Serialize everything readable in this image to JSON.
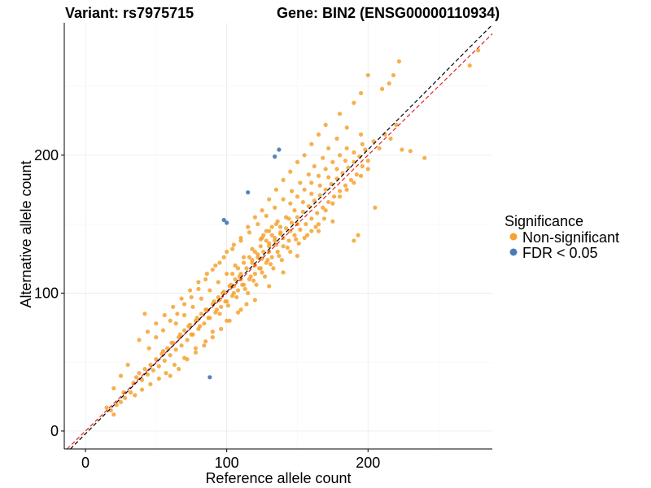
{
  "chart_data": {
    "type": "scatter",
    "title_left": "Variant: rs7975715",
    "title_right": "Gene: BIN2 (ENSG00000110934)",
    "xlabel": "Reference allele count",
    "ylabel": "Alternative allele count",
    "xlim": [
      -15,
      288
    ],
    "ylim": [
      -13,
      296
    ],
    "x_ticks": [
      0,
      100,
      200
    ],
    "y_ticks": [
      0,
      100,
      200
    ],
    "grid": true,
    "legend": {
      "title": "Significance",
      "placement": "right",
      "entries": [
        {
          "label": "Non-significant",
          "color": "#F5A22F"
        },
        {
          "label": "FDR < 0.05",
          "color": "#4A7DB5"
        }
      ]
    },
    "reference_lines": [
      {
        "name": "identity",
        "slope": 1,
        "intercept": 0,
        "color": "#E32222",
        "style": "dashed"
      },
      {
        "name": "fit",
        "slope": 1.03,
        "intercept": -2,
        "color": "#000000",
        "style": "dashed"
      }
    ],
    "series": [
      {
        "name": "Non-significant",
        "color": "#F5A22F",
        "points": [
          [
            15,
            17
          ],
          [
            18,
            15
          ],
          [
            20,
            12
          ],
          [
            22,
            19
          ],
          [
            25,
            21
          ],
          [
            28,
            24
          ],
          [
            20,
            31
          ],
          [
            27,
            28
          ],
          [
            32,
            28
          ],
          [
            34,
            35
          ],
          [
            36,
            39
          ],
          [
            38,
            42
          ],
          [
            40,
            37
          ],
          [
            42,
            45
          ],
          [
            44,
            41
          ],
          [
            46,
            48
          ],
          [
            48,
            44
          ],
          [
            50,
            52
          ],
          [
            52,
            47
          ],
          [
            54,
            56
          ],
          [
            56,
            51
          ],
          [
            58,
            60
          ],
          [
            60,
            55
          ],
          [
            62,
            64
          ],
          [
            64,
            59
          ],
          [
            66,
            68
          ],
          [
            68,
            62
          ],
          [
            70,
            73
          ],
          [
            72,
            66
          ],
          [
            74,
            77
          ],
          [
            76,
            70
          ],
          [
            78,
            80
          ],
          [
            80,
            74
          ],
          [
            82,
            85
          ],
          [
            84,
            78
          ],
          [
            86,
            88
          ],
          [
            88,
            82
          ],
          [
            90,
            92
          ],
          [
            92,
            86
          ],
          [
            94,
            97
          ],
          [
            96,
            90
          ],
          [
            98,
            101
          ],
          [
            100,
            94
          ],
          [
            102,
            105
          ],
          [
            104,
            98
          ],
          [
            106,
            110
          ],
          [
            108,
            102
          ],
          [
            110,
            114
          ],
          [
            112,
            106
          ],
          [
            114,
            118
          ],
          [
            116,
            110
          ],
          [
            118,
            122
          ],
          [
            120,
            114
          ],
          [
            122,
            126
          ],
          [
            124,
            118
          ],
          [
            126,
            130
          ],
          [
            128,
            122
          ],
          [
            130,
            134
          ],
          [
            132,
            126
          ],
          [
            134,
            138
          ],
          [
            136,
            130
          ],
          [
            138,
            143
          ],
          [
            140,
            134
          ],
          [
            142,
            147
          ],
          [
            144,
            138
          ],
          [
            146,
            151
          ],
          [
            148,
            142
          ],
          [
            150,
            155
          ],
          [
            152,
            146
          ],
          [
            154,
            159
          ],
          [
            156,
            150
          ],
          [
            158,
            163
          ],
          [
            160,
            154
          ],
          [
            162,
            167
          ],
          [
            164,
            158
          ],
          [
            166,
            171
          ],
          [
            168,
            162
          ],
          [
            170,
            175
          ],
          [
            172,
            166
          ],
          [
            174,
            179
          ],
          [
            176,
            170
          ],
          [
            178,
            183
          ],
          [
            180,
            174
          ],
          [
            182,
            187
          ],
          [
            184,
            178
          ],
          [
            186,
            191
          ],
          [
            188,
            182
          ],
          [
            190,
            195
          ],
          [
            192,
            186
          ],
          [
            194,
            199
          ],
          [
            196,
            192
          ],
          [
            198,
            204
          ],
          [
            200,
            196
          ],
          [
            204,
            210
          ],
          [
            208,
            205
          ],
          [
            212,
            215
          ],
          [
            216,
            212
          ],
          [
            220,
            222
          ],
          [
            224,
            204
          ],
          [
            230,
            203
          ],
          [
            240,
            198
          ],
          [
            205,
            162
          ],
          [
            190,
            138
          ],
          [
            193,
            142
          ],
          [
            175,
            152
          ],
          [
            165,
            145
          ],
          [
            150,
            127
          ],
          [
            140,
            115
          ],
          [
            130,
            105
          ],
          [
            120,
            95
          ],
          [
            110,
            88
          ],
          [
            100,
            80
          ],
          [
            90,
            72
          ],
          [
            85,
            65
          ],
          [
            78,
            60
          ],
          [
            70,
            53
          ],
          [
            63,
            48
          ],
          [
            57,
            42
          ],
          [
            52,
            38
          ],
          [
            46,
            34
          ],
          [
            40,
            30
          ],
          [
            35,
            26
          ],
          [
            45,
            60
          ],
          [
            50,
            68
          ],
          [
            55,
            73
          ],
          [
            60,
            80
          ],
          [
            65,
            85
          ],
          [
            70,
            92
          ],
          [
            75,
            97
          ],
          [
            80,
            103
          ],
          [
            85,
            110
          ],
          [
            90,
            117
          ],
          [
            95,
            122
          ],
          [
            100,
            130
          ],
          [
            105,
            135
          ],
          [
            110,
            140
          ],
          [
            115,
            148
          ],
          [
            120,
            155
          ],
          [
            125,
            160
          ],
          [
            130,
            168
          ],
          [
            135,
            175
          ],
          [
            140,
            182
          ],
          [
            145,
            188
          ],
          [
            150,
            195
          ],
          [
            155,
            200
          ],
          [
            160,
            208
          ],
          [
            165,
            215
          ],
          [
            170,
            222
          ],
          [
            180,
            230
          ],
          [
            190,
            238
          ],
          [
            195,
            245
          ],
          [
            200,
            258
          ],
          [
            210,
            248
          ],
          [
            215,
            252
          ],
          [
            222,
            268
          ],
          [
            218,
            258
          ],
          [
            272,
            265
          ],
          [
            278,
            276
          ],
          [
            185,
            220
          ],
          [
            178,
            212
          ],
          [
            172,
            205
          ],
          [
            168,
            198
          ],
          [
            162,
            192
          ],
          [
            158,
            186
          ],
          [
            152,
            180
          ],
          [
            146,
            174
          ],
          [
            140,
            168
          ],
          [
            134,
            162
          ],
          [
            128,
            156
          ],
          [
            122,
            150
          ],
          [
            116,
            144
          ],
          [
            110,
            138
          ],
          [
            104,
            132
          ],
          [
            98,
            126
          ],
          [
            92,
            120
          ],
          [
            86,
            114
          ],
          [
            80,
            108
          ],
          [
            74,
            102
          ],
          [
            68,
            96
          ],
          [
            62,
            90
          ],
          [
            56,
            84
          ],
          [
            50,
            78
          ],
          [
            44,
            72
          ],
          [
            38,
            66
          ],
          [
            42,
            85
          ],
          [
            30,
            48
          ],
          [
            25,
            40
          ],
          [
            125,
            140
          ],
          [
            130,
            145
          ],
          [
            135,
            150
          ],
          [
            118,
            132
          ],
          [
            112,
            126
          ],
          [
            106,
            120
          ],
          [
            100,
            114
          ],
          [
            94,
            108
          ],
          [
            88,
            102
          ],
          [
            82,
            96
          ],
          [
            76,
            90
          ],
          [
            70,
            84
          ],
          [
            64,
            78
          ],
          [
            142,
            155
          ],
          [
            148,
            160
          ],
          [
            154,
            166
          ],
          [
            160,
            172
          ],
          [
            166,
            178
          ],
          [
            172,
            184
          ],
          [
            178,
            190
          ],
          [
            184,
            196
          ],
          [
            190,
            202
          ],
          [
            196,
            208
          ],
          [
            115,
            100
          ],
          [
            121,
            106
          ],
          [
            127,
            112
          ],
          [
            133,
            118
          ],
          [
            139,
            124
          ],
          [
            145,
            130
          ],
          [
            151,
            136
          ],
          [
            157,
            142
          ],
          [
            163,
            148
          ],
          [
            169,
            154
          ],
          [
            95,
            85
          ],
          [
            101,
            91
          ],
          [
            107,
            97
          ],
          [
            113,
            103
          ],
          [
            119,
            109
          ],
          [
            125,
            115
          ],
          [
            131,
            121
          ],
          [
            137,
            127
          ],
          [
            143,
            133
          ],
          [
            149,
            139
          ],
          [
            75,
            70
          ],
          [
            81,
            76
          ],
          [
            87,
            82
          ],
          [
            93,
            88
          ],
          [
            99,
            94
          ],
          [
            105,
            100
          ],
          [
            111,
            106
          ],
          [
            117,
            112
          ],
          [
            123,
            118
          ],
          [
            129,
            124
          ],
          [
            55,
            58
          ],
          [
            61,
            64
          ],
          [
            67,
            70
          ],
          [
            73,
            76
          ],
          [
            79,
            82
          ],
          [
            85,
            88
          ],
          [
            91,
            94
          ],
          [
            97,
            100
          ],
          [
            103,
            106
          ],
          [
            109,
            112
          ],
          [
            132,
            142
          ],
          [
            138,
            148
          ],
          [
            144,
            154
          ],
          [
            128,
            138
          ],
          [
            124,
            134
          ],
          [
            120,
            130
          ],
          [
            116,
            126
          ],
          [
            112,
            122
          ],
          [
            108,
            118
          ],
          [
            104,
            114
          ],
          [
            155,
            140
          ],
          [
            160,
            145
          ],
          [
            165,
            150
          ],
          [
            170,
            160
          ],
          [
            175,
            165
          ],
          [
            180,
            170
          ],
          [
            185,
            175
          ],
          [
            190,
            180
          ],
          [
            195,
            185
          ],
          [
            200,
            190
          ],
          [
            120,
            120
          ],
          [
            125,
            125
          ],
          [
            130,
            130
          ],
          [
            135,
            135
          ],
          [
            140,
            140
          ],
          [
            145,
            145
          ],
          [
            150,
            150
          ],
          [
            110,
            110
          ],
          [
            105,
            105
          ],
          [
            95,
            95
          ],
          [
            128,
            145
          ],
          [
            132,
            148
          ],
          [
            126,
            142
          ],
          [
            136,
            152
          ],
          [
            124,
            139
          ],
          [
            130,
            136
          ],
          [
            134,
            140
          ],
          [
            122,
            128
          ],
          [
            118,
            124
          ],
          [
            138,
            144
          ],
          [
            160,
            180
          ],
          [
            165,
            185
          ],
          [
            155,
            175
          ],
          [
            150,
            170
          ],
          [
            145,
            165
          ],
          [
            170,
            190
          ],
          [
            175,
            195
          ],
          [
            180,
            200
          ],
          [
            185,
            205
          ],
          [
            195,
            215
          ],
          [
            60,
            40
          ],
          [
            66,
            45
          ],
          [
            72,
            52
          ],
          [
            78,
            57
          ],
          [
            84,
            62
          ],
          [
            90,
            68
          ],
          [
            96,
            74
          ],
          [
            102,
            80
          ],
          [
            108,
            86
          ],
          [
            114,
            92
          ]
        ]
      },
      {
        "name": "FDR < 0.05",
        "color": "#4A7DB5",
        "points": [
          [
            88,
            39
          ],
          [
            98,
            153
          ],
          [
            100,
            151
          ],
          [
            115,
            173
          ],
          [
            134,
            199
          ],
          [
            137,
            204
          ]
        ]
      }
    ]
  }
}
